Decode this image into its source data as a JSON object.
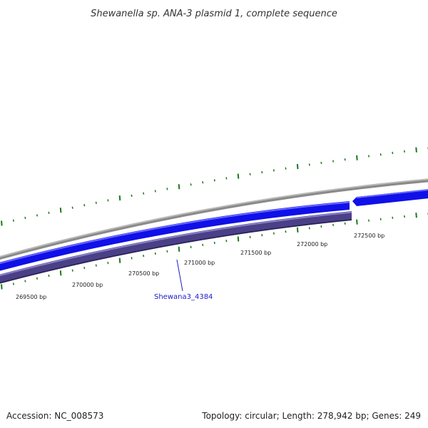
{
  "title": "Shewanella sp. ANA-3 plasmid 1, complete sequence",
  "accession": "Accession: NC_008573",
  "summary": "Topology: circular; Length: 278,942 bp; Genes: 249",
  "gene_label": "Shewana3_4384",
  "position_labels": [
    "269500 bp",
    "270000 bp",
    "270500 bp",
    "271000 bp",
    "271500 bp",
    "272000 bp",
    "272500 bp"
  ],
  "colors": {
    "backbone": "#8a8a8a",
    "gene_forward": "#1010e8",
    "gene_reverse": "#4a4088",
    "tick": "#1a7a1a",
    "gene_label": "#1a1acc"
  }
}
